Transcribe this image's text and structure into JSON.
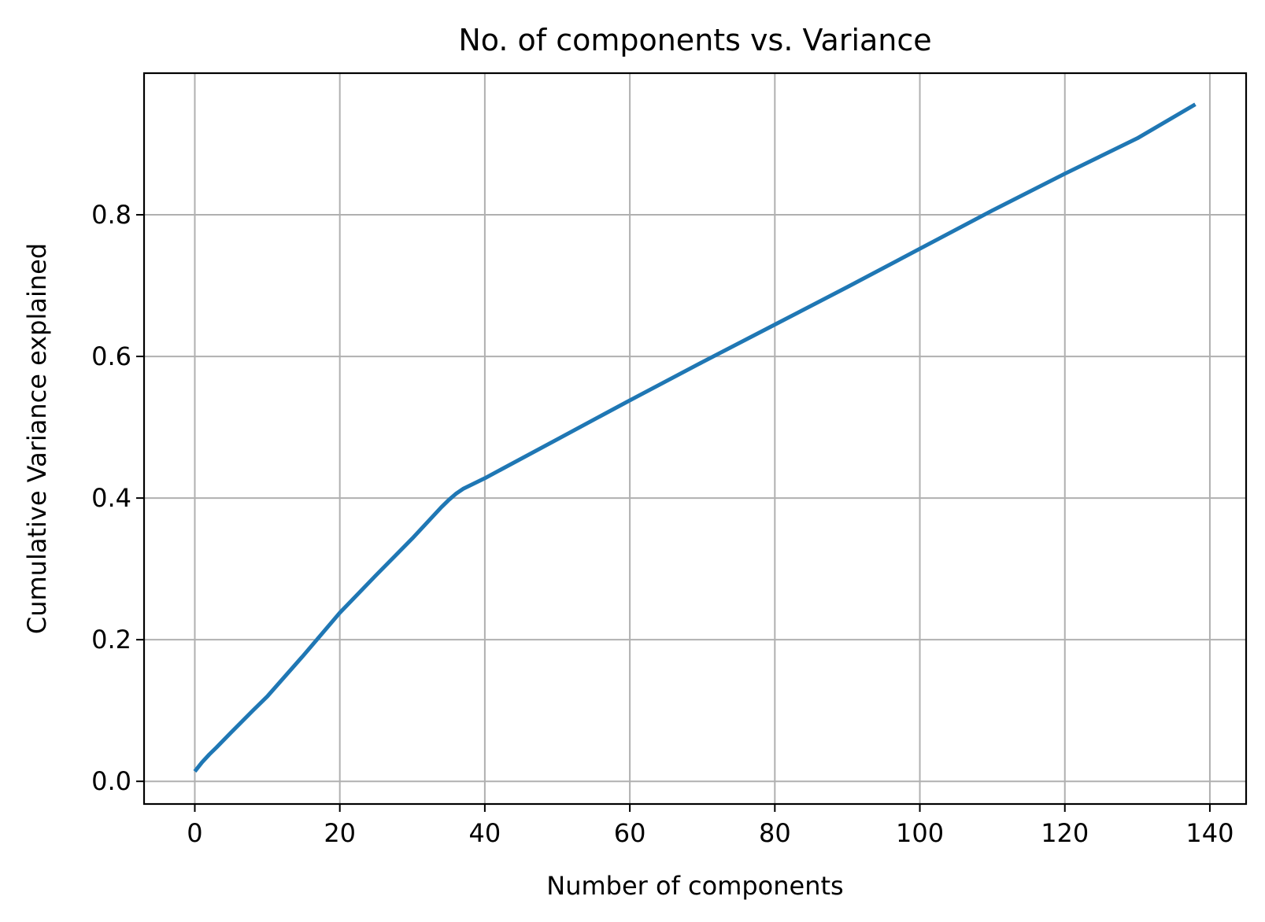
{
  "chart_data": {
    "type": "line",
    "title": "No. of components vs. Variance",
    "xlabel": "Number of components",
    "ylabel": "Cumulative Variance explained",
    "xlim": [
      -7,
      145
    ],
    "ylim": [
      -0.032,
      1.0
    ],
    "xticks": [
      0,
      20,
      40,
      60,
      80,
      100,
      120,
      140
    ],
    "yticks": [
      0.0,
      0.2,
      0.4,
      0.6,
      0.8
    ],
    "xtick_labels": [
      "0",
      "20",
      "40",
      "60",
      "80",
      "100",
      "120",
      "140"
    ],
    "ytick_labels": [
      "0.0",
      "0.2",
      "0.4",
      "0.6",
      "0.8"
    ],
    "grid": true,
    "series": [
      {
        "color": "#1f77b4",
        "x": [
          0,
          1,
          2,
          3,
          5,
          8,
          10,
          15,
          20,
          25,
          30,
          34,
          35,
          36,
          37,
          38,
          40,
          50,
          60,
          70,
          80,
          90,
          100,
          110,
          120,
          130,
          138
        ],
        "y": [
          0.014,
          0.027,
          0.038,
          0.048,
          0.069,
          0.1,
          0.12,
          0.178,
          0.238,
          0.291,
          0.343,
          0.387,
          0.397,
          0.406,
          0.413,
          0.418,
          0.428,
          0.483,
          0.538,
          0.592,
          0.645,
          0.698,
          0.752,
          0.806,
          0.858,
          0.908,
          0.956
        ]
      }
    ]
  }
}
